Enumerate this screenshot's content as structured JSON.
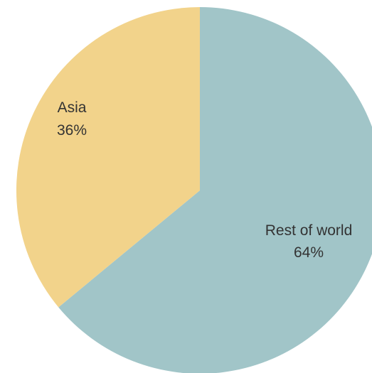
{
  "chart_data": {
    "type": "pie",
    "title": "",
    "start_angle_deg": 0,
    "direction": "clockwise",
    "slices": [
      {
        "label": "Rest of world",
        "value": 64,
        "value_label": "64%",
        "color": "#a1c5c8"
      },
      {
        "label": "Asia",
        "value": 36,
        "value_label": "36%",
        "color": "#f2d38b"
      }
    ]
  }
}
